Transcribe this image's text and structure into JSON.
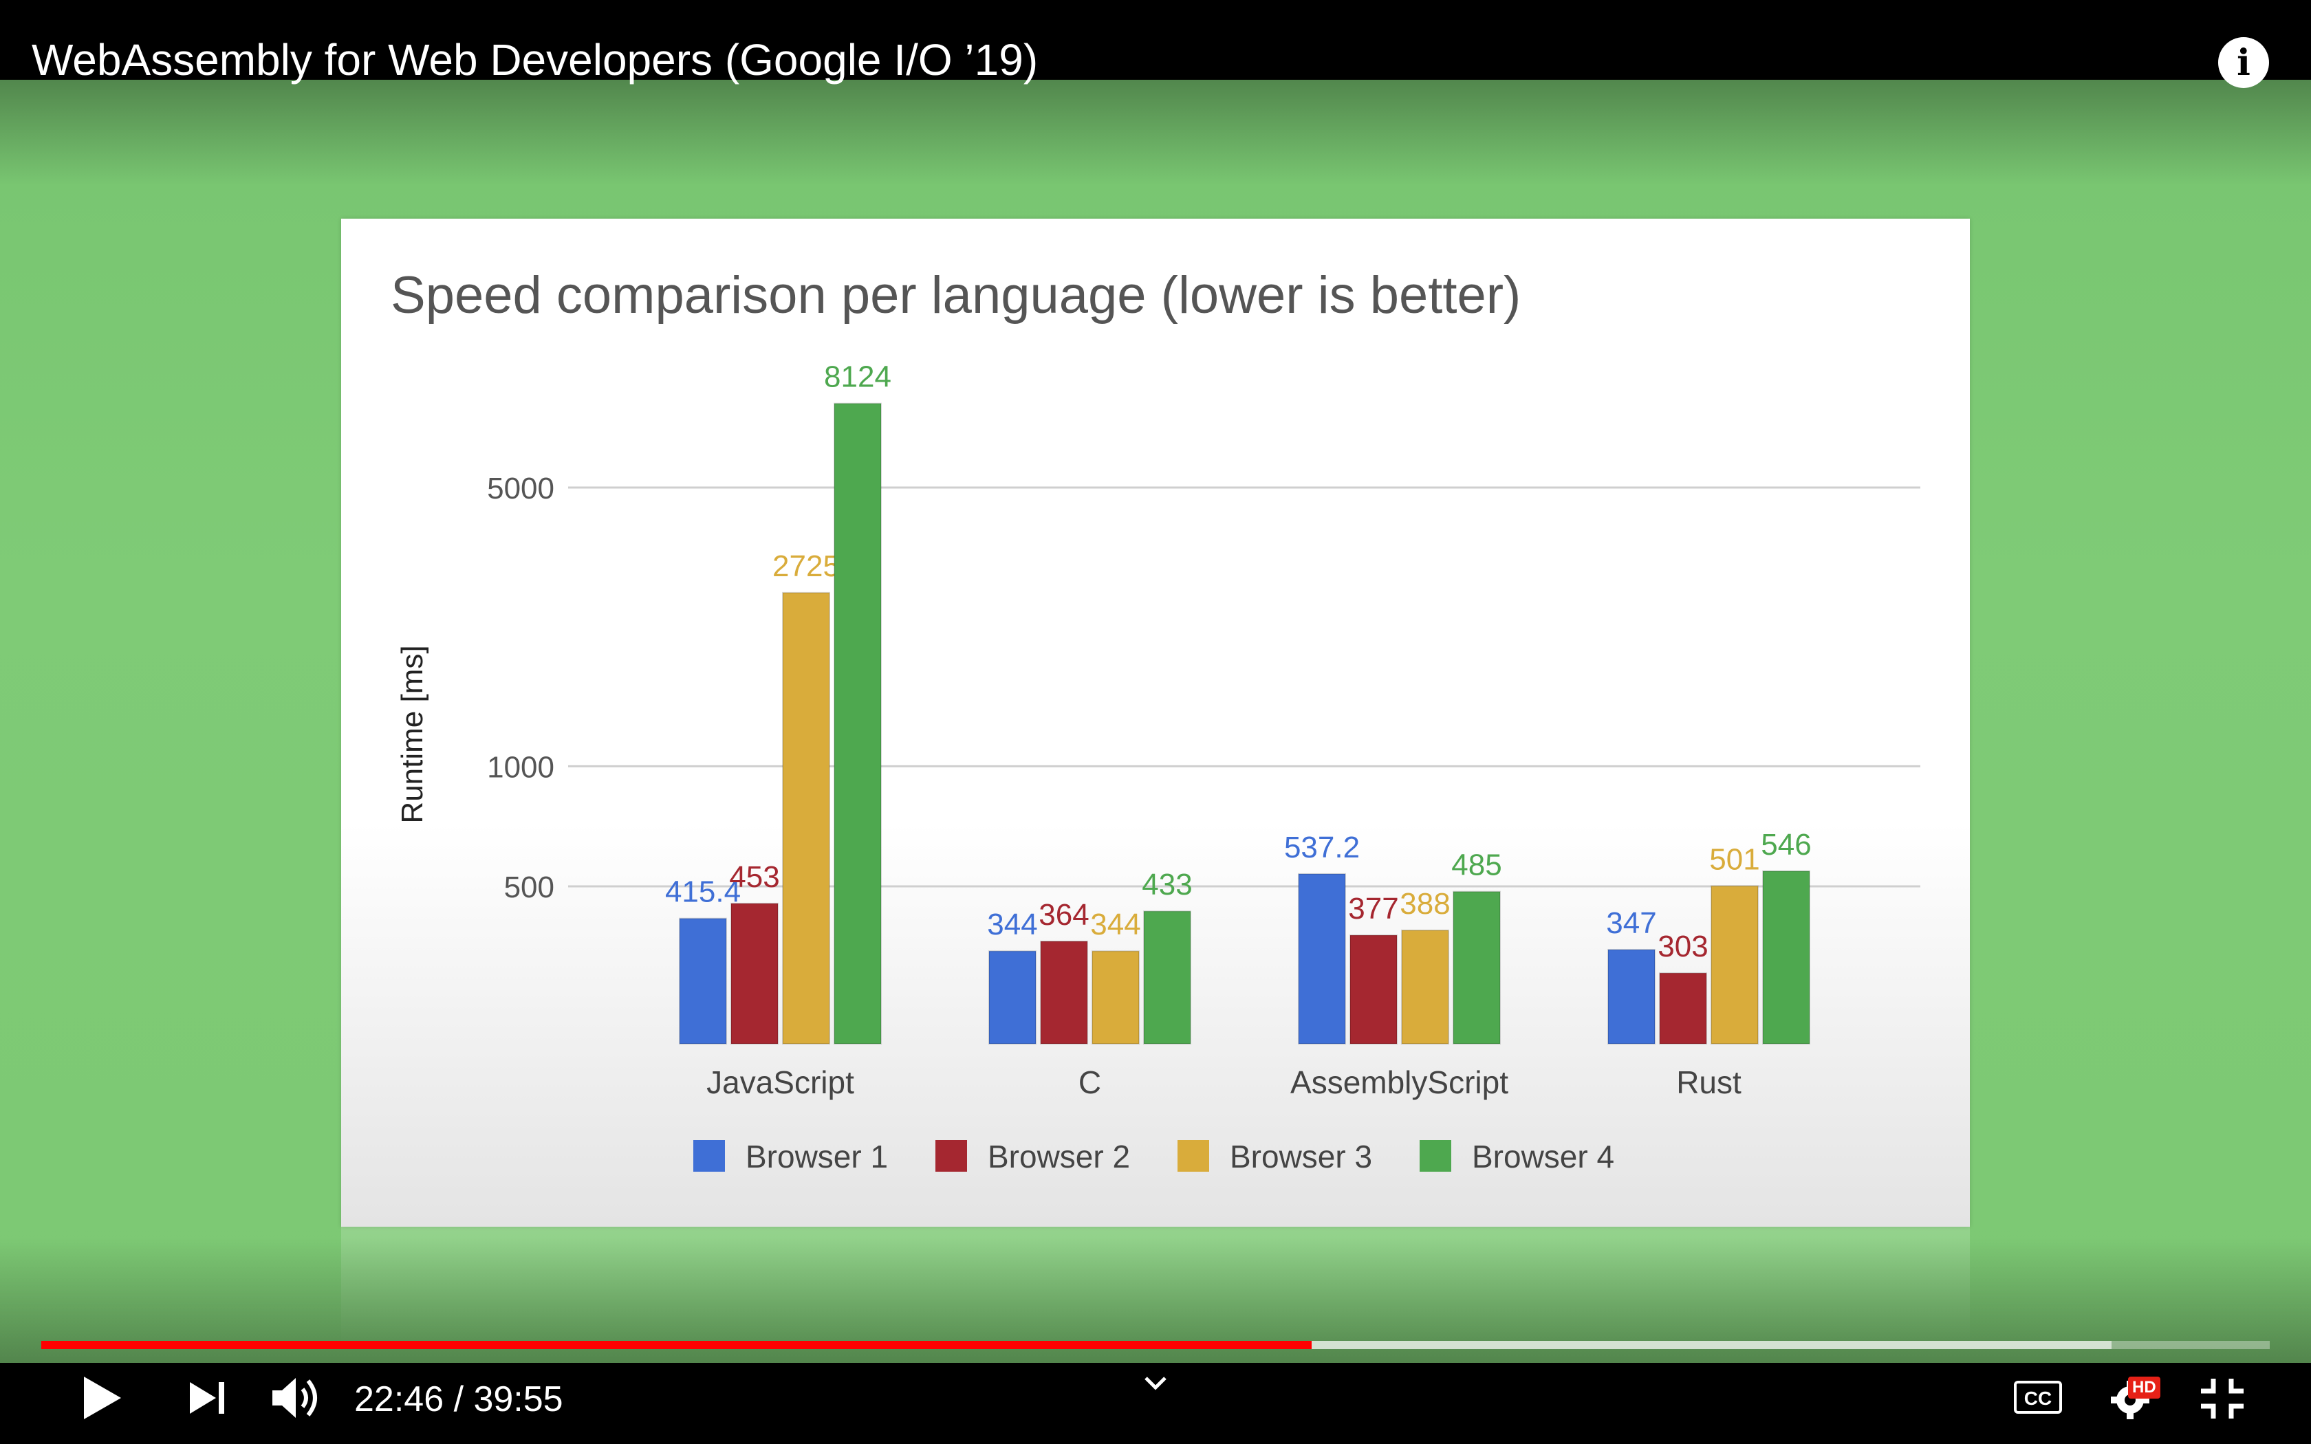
{
  "video": {
    "title": "WebAssembly for Web Developers (Google I/O ’19)",
    "current_time": "22:46",
    "duration": "39:55",
    "time_display": "22:46 / 39:55",
    "progress_fraction": 0.57,
    "buffered_fraction": 0.929
  },
  "controls": {
    "play_icon": "play-icon",
    "next_icon": "next-icon",
    "volume_icon": "volume-icon",
    "chevron_icon": "chevron-down-icon",
    "cc_label": "CC",
    "hd_badge": "HD",
    "info_label": "i"
  },
  "colors": {
    "browser1": "#3f6fd6",
    "browser2": "#a52730",
    "browser3": "#d9ac3b",
    "browser4": "#4ea84f",
    "progress": "#ff0000"
  },
  "chart_data": {
    "type": "bar",
    "title": "Speed comparison per language (lower is better)",
    "ylabel": "Runtime [ms]",
    "yscale": "log",
    "yticks": [
      500,
      1000,
      5000
    ],
    "categories": [
      "JavaScript",
      "C",
      "AssemblyScript",
      "Rust"
    ],
    "series": [
      {
        "name": "Browser 1",
        "values": [
          415.4,
          344,
          537.2,
          347
        ],
        "labels": [
          "415.4",
          "344",
          "537.2",
          "347"
        ]
      },
      {
        "name": "Browser 2",
        "values": [
          453,
          364,
          377,
          303
        ],
        "labels": [
          "453",
          "364",
          "377",
          "303"
        ]
      },
      {
        "name": "Browser 3",
        "values": [
          2725,
          344,
          388,
          501
        ],
        "labels": [
          "2725",
          "344",
          "388",
          "501"
        ]
      },
      {
        "name": "Browser 4",
        "values": [
          8124,
          433,
          485,
          546
        ],
        "labels": [
          "8124",
          "433",
          "485",
          "546"
        ]
      }
    ],
    "legend": "bottom",
    "grid": true
  }
}
